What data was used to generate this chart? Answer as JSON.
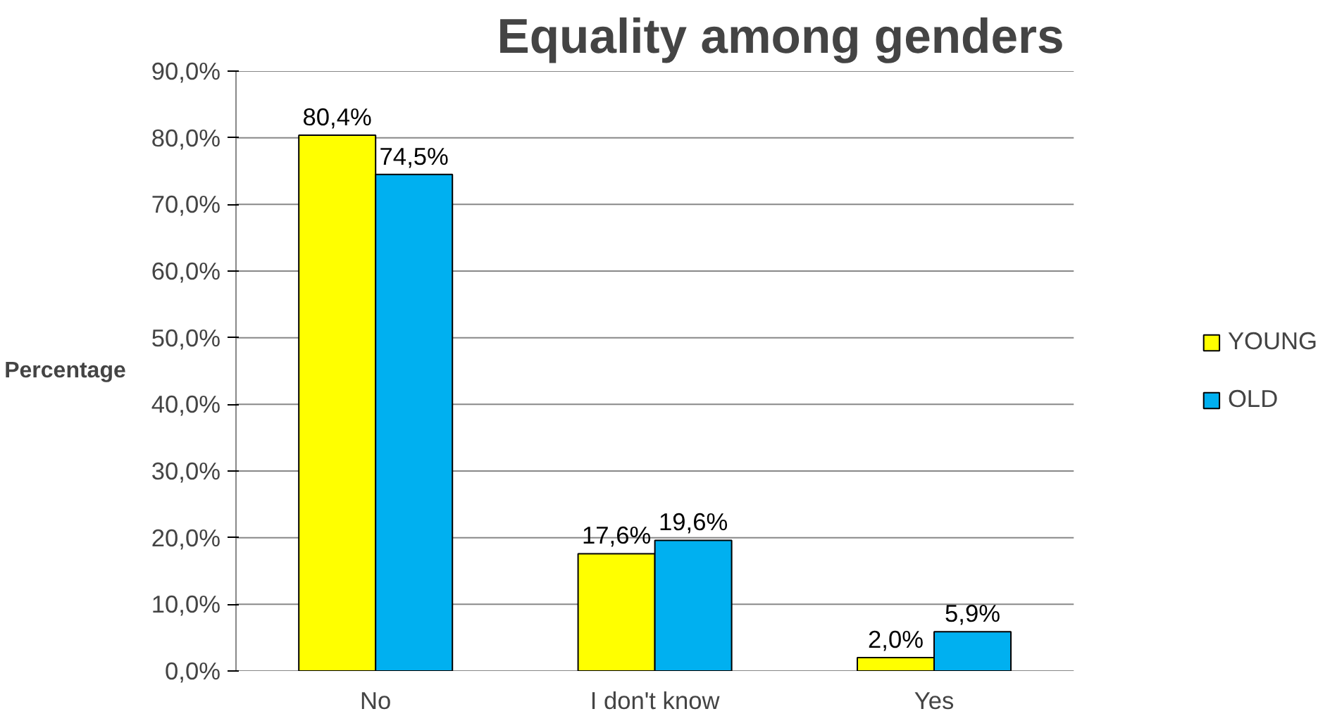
{
  "chart_data": {
    "type": "bar",
    "title": "Equality among genders",
    "ylabel": "Percentage",
    "categories": [
      "No",
      "I don't know",
      "Yes"
    ],
    "series": [
      {
        "name": "YOUNG",
        "color": "#ffff00",
        "values": [
          80.4,
          17.6,
          2.0
        ],
        "value_labels": [
          "80,4%",
          "17,6%",
          "2,0%"
        ]
      },
      {
        "name": "OLD",
        "color": "#00b0f0",
        "values": [
          74.5,
          19.6,
          5.9
        ],
        "value_labels": [
          "74,5%",
          "19,6%",
          "5,9%"
        ]
      }
    ],
    "ylim": [
      0,
      90
    ],
    "yticks": [
      {
        "value": 0,
        "label": "0,0%"
      },
      {
        "value": 10,
        "label": "10,0%"
      },
      {
        "value": 20,
        "label": "20,0%"
      },
      {
        "value": 30,
        "label": "30,0%"
      },
      {
        "value": 40,
        "label": "40,0%"
      },
      {
        "value": 50,
        "label": "50,0%"
      },
      {
        "value": 60,
        "label": "60,0%"
      },
      {
        "value": 70,
        "label": "70,0%"
      },
      {
        "value": 80,
        "label": "80,0%"
      },
      {
        "value": 90,
        "label": "90,0%"
      }
    ],
    "grid": "y",
    "legend": "right"
  }
}
